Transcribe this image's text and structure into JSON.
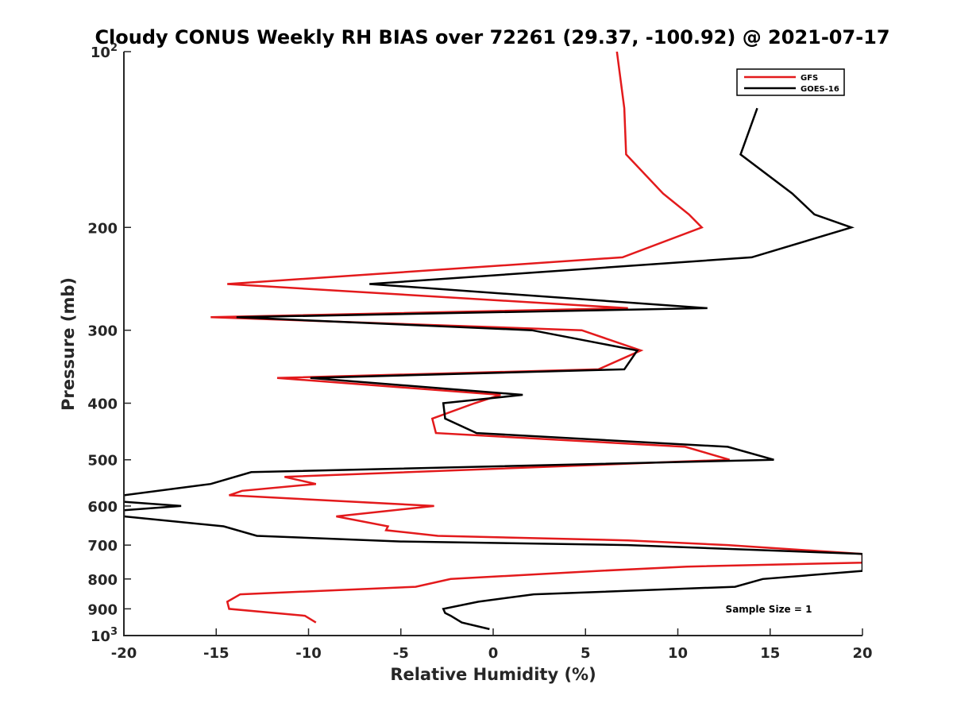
{
  "chart_data": {
    "type": "line",
    "title": "Cloudy CONUS Weekly RH BIAS over 72261 (29.37, -100.92) @ 2021-07-17",
    "xlabel": "Relative Humidity (%)",
    "ylabel": "Pressure (mb)",
    "xlim": [
      -20,
      20
    ],
    "ylim": [
      100,
      1000
    ],
    "y_scale": "log",
    "y_reversed": true,
    "x_ticks": [
      "-20",
      "-15",
      "-10",
      "-5",
      "0",
      "5",
      "10",
      "15",
      "20"
    ],
    "y_ticks": [
      {
        "value": 100,
        "label": "10",
        "sup": "2"
      },
      {
        "value": 200,
        "label": "200"
      },
      {
        "value": 300,
        "label": "300"
      },
      {
        "value": 400,
        "label": "400"
      },
      {
        "value": 500,
        "label": "500"
      },
      {
        "value": 600,
        "label": "600"
      },
      {
        "value": 700,
        "label": "700"
      },
      {
        "value": 800,
        "label": "800"
      },
      {
        "value": 900,
        "label": "900"
      },
      {
        "value": 1000,
        "label": "10",
        "sup": "3"
      }
    ],
    "grid": false,
    "legend_position": "top-right",
    "annotation": "Sample Size = 1",
    "series": [
      {
        "name": "GFS",
        "color": "#e31a1c",
        "points": [
          [
            6.7,
            100
          ],
          [
            7.1,
            125
          ],
          [
            7.2,
            150
          ],
          [
            9.2,
            175
          ],
          [
            10.6,
            190
          ],
          [
            11.3,
            200
          ],
          [
            7.0,
            225
          ],
          [
            -14.4,
            250
          ],
          [
            7.3,
            275
          ],
          [
            -15.3,
            285
          ],
          [
            4.8,
            300
          ],
          [
            8.0,
            325
          ],
          [
            5.7,
            350
          ],
          [
            -11.7,
            362
          ],
          [
            0.4,
            387
          ],
          [
            -1.0,
            400
          ],
          [
            -3.3,
            425
          ],
          [
            -3.1,
            450
          ],
          [
            10.4,
            475
          ],
          [
            12.8,
            500
          ],
          [
            -11.3,
            535
          ],
          [
            -9.6,
            550
          ],
          [
            -13.6,
            565
          ],
          [
            -14.3,
            575
          ],
          [
            -3.2,
            600
          ],
          [
            -8.5,
            625
          ],
          [
            -5.7,
            650
          ],
          [
            -5.8,
            660
          ],
          [
            -3.0,
            675
          ],
          [
            7.3,
            687
          ],
          [
            12.7,
            700
          ],
          [
            20.0,
            725
          ],
          [
            20.0,
            750
          ],
          [
            10.5,
            762
          ],
          [
            5.7,
            775
          ],
          [
            -2.3,
            800
          ],
          [
            -4.2,
            825
          ],
          [
            -13.7,
            850
          ],
          [
            -14.4,
            875
          ],
          [
            -14.3,
            900
          ],
          [
            -10.2,
            925
          ],
          [
            -9.6,
            950
          ]
        ]
      },
      {
        "name": "GOES-16",
        "color": "#000000",
        "points": [
          [
            14.3,
            125
          ],
          [
            13.4,
            150
          ],
          [
            16.2,
            175
          ],
          [
            17.4,
            190
          ],
          [
            19.4,
            200
          ],
          [
            14.0,
            225
          ],
          [
            -6.7,
            250
          ],
          [
            11.6,
            275
          ],
          [
            -13.9,
            285
          ],
          [
            2.1,
            300
          ],
          [
            7.8,
            325
          ],
          [
            7.1,
            350
          ],
          [
            -9.9,
            362
          ],
          [
            1.6,
            387
          ],
          [
            -2.7,
            400
          ],
          [
            -2.6,
            425
          ],
          [
            -0.9,
            450
          ],
          [
            12.7,
            475
          ],
          [
            15.2,
            500
          ],
          [
            -13.1,
            525
          ],
          [
            -15.3,
            550
          ],
          [
            -20.0,
            575
          ],
          [
            -20.0,
            590
          ],
          [
            -16.9,
            600
          ],
          [
            -20.0,
            610
          ],
          [
            -20.0,
            625
          ],
          [
            -14.6,
            650
          ],
          [
            -12.8,
            675
          ],
          [
            -5.0,
            690
          ],
          [
            7.3,
            700
          ],
          [
            20.0,
            725
          ],
          [
            20.0,
            775
          ],
          [
            14.6,
            800
          ],
          [
            13.1,
            825
          ],
          [
            2.2,
            850
          ],
          [
            -0.8,
            875
          ],
          [
            -2.7,
            900
          ],
          [
            -2.6,
            915
          ],
          [
            -2.3,
            925
          ],
          [
            -1.7,
            950
          ],
          [
            -0.2,
            975
          ]
        ]
      }
    ]
  }
}
